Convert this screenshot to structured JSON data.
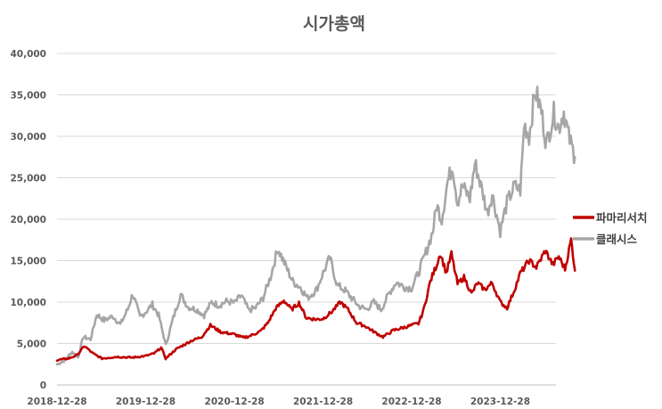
{
  "chart_data": {
    "type": "line",
    "title": "시가총액",
    "xlabel": "",
    "ylabel": "",
    "ylim": [
      0,
      40000
    ],
    "yticks": [
      0,
      5000,
      10000,
      15000,
      20000,
      25000,
      30000,
      35000,
      40000
    ],
    "ytick_labels": [
      "0",
      "5,000",
      "10,000",
      "15,000",
      "20,000",
      "25,000",
      "30,000",
      "35,000",
      "40,000"
    ],
    "xlim": [
      "2018-12-28",
      "2024-10-31"
    ],
    "xticks": [
      "2018-12-28",
      "2019-12-28",
      "2020-12-28",
      "2021-12-28",
      "2022-12-28",
      "2023-12-28"
    ],
    "grid": true,
    "legend_position": "right",
    "series": [
      {
        "name": "파마리서치",
        "color": "#c00000",
        "points": [
          [
            "2018-12-28",
            3000
          ],
          [
            "2019-02-15",
            3200
          ],
          [
            "2019-03-20",
            3600
          ],
          [
            "2019-04-20",
            4700
          ],
          [
            "2019-05-25",
            3800
          ],
          [
            "2019-07-01",
            3200
          ],
          [
            "2019-09-01",
            3400
          ],
          [
            "2019-11-01",
            3300
          ],
          [
            "2019-12-28",
            3500
          ],
          [
            "2020-02-01",
            3800
          ],
          [
            "2020-03-01",
            4500
          ],
          [
            "2020-03-20",
            3200
          ],
          [
            "2020-05-01",
            4300
          ],
          [
            "2020-07-01",
            5300
          ],
          [
            "2020-08-15",
            5800
          ],
          [
            "2020-09-20",
            7200
          ],
          [
            "2020-11-01",
            6400
          ],
          [
            "2020-12-28",
            6100
          ],
          [
            "2021-02-01",
            5700
          ],
          [
            "2021-03-01",
            5900
          ],
          [
            "2021-04-15",
            6500
          ],
          [
            "2021-05-15",
            7500
          ],
          [
            "2021-06-15",
            9200
          ],
          [
            "2021-07-20",
            10200
          ],
          [
            "2021-08-20",
            9100
          ],
          [
            "2021-09-20",
            9900
          ],
          [
            "2021-10-20",
            8100
          ],
          [
            "2021-12-01",
            7900
          ],
          [
            "2021-12-28",
            8000
          ],
          [
            "2022-02-01",
            8800
          ],
          [
            "2022-03-10",
            10000
          ],
          [
            "2022-04-10",
            9100
          ],
          [
            "2022-05-15",
            7500
          ],
          [
            "2022-06-20",
            7100
          ],
          [
            "2022-08-01",
            6300
          ],
          [
            "2022-09-01",
            5800
          ],
          [
            "2022-10-15",
            6600
          ],
          [
            "2022-12-28",
            7200
          ],
          [
            "2023-01-25",
            7400
          ],
          [
            "2023-02-15",
            9000
          ],
          [
            "2023-03-15",
            12500
          ],
          [
            "2023-04-10",
            14500
          ],
          [
            "2023-04-25",
            15900
          ],
          [
            "2023-05-20",
            13500
          ],
          [
            "2023-06-10",
            15800
          ],
          [
            "2023-07-05",
            12200
          ],
          [
            "2023-08-01",
            13000
          ],
          [
            "2023-09-01",
            11000
          ],
          [
            "2023-09-25",
            12300
          ],
          [
            "2023-10-25",
            11500
          ],
          [
            "2023-11-25",
            12300
          ],
          [
            "2023-12-28",
            10000
          ],
          [
            "2024-01-25",
            9300
          ],
          [
            "2024-02-25",
            11500
          ],
          [
            "2024-03-20",
            13500
          ],
          [
            "2024-04-25",
            15000
          ],
          [
            "2024-05-25",
            14200
          ],
          [
            "2024-07-01",
            16200
          ],
          [
            "2024-08-01",
            14500
          ],
          [
            "2024-08-25",
            15500
          ],
          [
            "2024-09-20",
            14000
          ],
          [
            "2024-10-15",
            17500
          ],
          [
            "2024-10-31",
            13800
          ]
        ]
      },
      {
        "name": "클래시스",
        "color": "#a6a6a6",
        "points": [
          [
            "2018-12-28",
            2500
          ],
          [
            "2019-01-25",
            2900
          ],
          [
            "2019-03-01",
            4000
          ],
          [
            "2019-03-25",
            3300
          ],
          [
            "2019-04-15",
            5800
          ],
          [
            "2019-05-15",
            5500
          ],
          [
            "2019-06-10",
            8500
          ],
          [
            "2019-07-10",
            7800
          ],
          [
            "2019-08-15",
            8300
          ],
          [
            "2019-09-15",
            7300
          ],
          [
            "2019-10-15",
            9100
          ],
          [
            "2019-11-05",
            11000
          ],
          [
            "2019-12-05",
            8200
          ],
          [
            "2019-12-28",
            8800
          ],
          [
            "2020-01-25",
            9700
          ],
          [
            "2020-02-20",
            8400
          ],
          [
            "2020-03-20",
            4800
          ],
          [
            "2020-04-20",
            8100
          ],
          [
            "2020-05-20",
            10900
          ],
          [
            "2020-06-20",
            9400
          ],
          [
            "2020-07-25",
            9100
          ],
          [
            "2020-08-25",
            8400
          ],
          [
            "2020-09-25",
            10000
          ],
          [
            "2020-10-25",
            9600
          ],
          [
            "2020-11-25",
            10100
          ],
          [
            "2020-12-28",
            9900
          ],
          [
            "2021-01-25",
            10800
          ],
          [
            "2021-02-25",
            9000
          ],
          [
            "2021-03-25",
            9300
          ],
          [
            "2021-04-25",
            10500
          ],
          [
            "2021-05-25",
            13000
          ],
          [
            "2021-06-25",
            16500
          ],
          [
            "2021-07-25",
            14500
          ],
          [
            "2021-08-25",
            12500
          ],
          [
            "2021-09-25",
            11800
          ],
          [
            "2021-10-25",
            10500
          ],
          [
            "2021-12-01",
            11500
          ],
          [
            "2021-12-28",
            13500
          ],
          [
            "2022-01-25",
            15300
          ],
          [
            "2022-02-25",
            12000
          ],
          [
            "2022-03-25",
            11500
          ],
          [
            "2022-04-25",
            10500
          ],
          [
            "2022-05-25",
            9500
          ],
          [
            "2022-06-25",
            9100
          ],
          [
            "2022-07-25",
            10000
          ],
          [
            "2022-08-25",
            9100
          ],
          [
            "2022-09-25",
            11000
          ],
          [
            "2022-10-25",
            12400
          ],
          [
            "2022-12-01",
            11800
          ],
          [
            "2022-12-28",
            11700
          ],
          [
            "2023-01-25",
            13500
          ],
          [
            "2023-02-25",
            16000
          ],
          [
            "2023-03-25",
            18500
          ],
          [
            "2023-04-10",
            21700
          ],
          [
            "2023-05-01",
            20000
          ],
          [
            "2023-05-25",
            24500
          ],
          [
            "2023-06-15",
            26500
          ],
          [
            "2023-07-05",
            22000
          ],
          [
            "2023-07-25",
            24000
          ],
          [
            "2023-08-25",
            22500
          ],
          [
            "2023-09-15",
            26800
          ],
          [
            "2023-10-10",
            24000
          ],
          [
            "2023-11-05",
            20800
          ],
          [
            "2023-11-25",
            23000
          ],
          [
            "2023-12-28",
            18600
          ],
          [
            "2024-01-25",
            22000
          ],
          [
            "2024-02-25",
            24000
          ],
          [
            "2024-03-20",
            23500
          ],
          [
            "2024-04-05",
            31500
          ],
          [
            "2024-04-25",
            30000
          ],
          [
            "2024-05-20",
            35500
          ],
          [
            "2024-06-15",
            33000
          ],
          [
            "2024-07-05",
            29000
          ],
          [
            "2024-08-05",
            32800
          ],
          [
            "2024-08-25",
            31000
          ],
          [
            "2024-09-15",
            33000
          ],
          [
            "2024-10-05",
            30000
          ],
          [
            "2024-10-31",
            27500
          ]
        ]
      }
    ]
  }
}
